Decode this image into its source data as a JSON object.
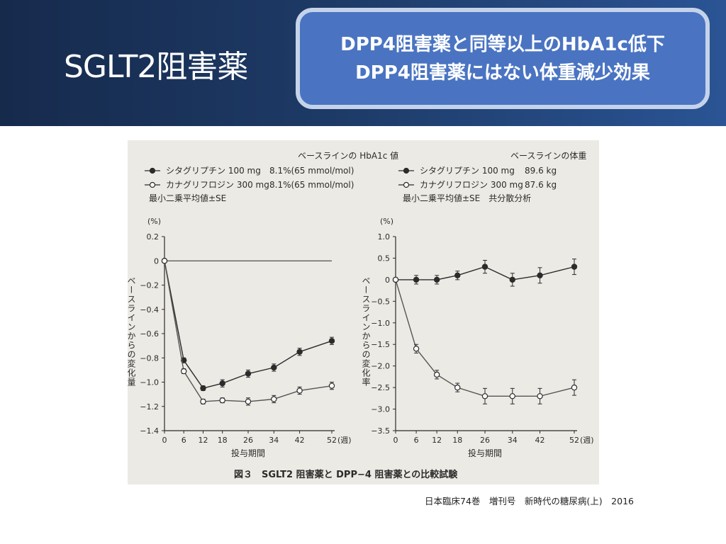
{
  "slide": {
    "title": "SGLT2阻害薬",
    "callout_line1": "DPP4阻害薬と同等以上のHbA1c低下",
    "callout_line2": "DPP4阻害薬にはない体重減少効果",
    "citation": "日本臨床74巻　増刊号　新時代の糖尿病(上)　2016",
    "figure_caption": "図３　SGLT2 阻害薬と DPP−4 阻害薬との比較試験",
    "colors": {
      "header": "#1d3a66",
      "callout_fill": "#4a74c2",
      "callout_border": "#c5d3ea"
    }
  },
  "chart_data": [
    {
      "type": "line",
      "title": "ベースラインの HbA1c 値",
      "legend": [
        {
          "marker": "filled",
          "label": "シタグリプチン 100 mg",
          "baseline": "8.1%(65 mmol/mol)"
        },
        {
          "marker": "open",
          "label": "カナグリフロジン 300 mg",
          "baseline": "8.1%(65 mmol/mol)"
        }
      ],
      "note": "最小二乗平均値±SE",
      "ylabel": "ベースラインからの変化量",
      "yunit": "(%)",
      "xlabel": "投与期間",
      "xunit": "(週)",
      "x": [
        0,
        6,
        12,
        18,
        26,
        34,
        42,
        52
      ],
      "ylim": [
        -1.4,
        0.2
      ],
      "yticks": [
        "0.2",
        "0",
        "−0.2",
        "−0.4",
        "−0.6",
        "−0.8",
        "−1.0",
        "−1.2",
        "−1.4"
      ],
      "ytick_values": [
        0.2,
        0,
        -0.2,
        -0.4,
        -0.6,
        -0.8,
        -1.0,
        -1.2,
        -1.4
      ],
      "series": [
        {
          "name": "シタグリプチン 100 mg",
          "marker": "filled",
          "values": [
            0,
            -0.82,
            -1.05,
            -1.01,
            -0.93,
            -0.88,
            -0.75,
            -0.66
          ],
          "errors": [
            0,
            0.02,
            0.02,
            0.03,
            0.03,
            0.03,
            0.03,
            0.03
          ]
        },
        {
          "name": "カナグリフロジン 300 mg",
          "marker": "open",
          "values": [
            0,
            -0.91,
            -1.16,
            -1.15,
            -1.16,
            -1.14,
            -1.07,
            -1.03
          ],
          "errors": [
            0,
            0.02,
            0.02,
            0.02,
            0.03,
            0.03,
            0.03,
            0.03
          ]
        }
      ]
    },
    {
      "type": "line",
      "title": "ベースラインの体重",
      "legend": [
        {
          "marker": "filled",
          "label": "シタグリプチン 100 mg",
          "baseline": "89.6 kg"
        },
        {
          "marker": "open",
          "label": "カナグリフロジン 300 mg",
          "baseline": "87.6 kg"
        }
      ],
      "note": "最小二乗平均値±SE　共分散分析",
      "ylabel": "ベースラインからの変化率",
      "yunit": "(%)",
      "xlabel": "投与期間",
      "xunit": "(週)",
      "x": [
        0,
        6,
        12,
        18,
        26,
        34,
        42,
        52
      ],
      "ylim": [
        -3.5,
        1.0
      ],
      "yticks": [
        "1.0",
        "0.5",
        "0",
        "−0.5",
        "−1.0",
        "−1.5",
        "−2.0",
        "−2.5",
        "−3.0",
        "−3.5"
      ],
      "ytick_values": [
        1.0,
        0.5,
        0,
        -0.5,
        -1.0,
        -1.5,
        -2.0,
        -2.5,
        -3.0,
        -3.5
      ],
      "series": [
        {
          "name": "シタグリプチン 100 mg",
          "marker": "filled",
          "values": [
            0,
            0,
            0,
            0.1,
            0.3,
            0,
            0.1,
            0.3
          ],
          "errors": [
            0,
            0.1,
            0.1,
            0.1,
            0.15,
            0.15,
            0.18,
            0.18
          ]
        },
        {
          "name": "カナグリフロジン 300 mg",
          "marker": "open",
          "values": [
            0,
            -1.6,
            -2.2,
            -2.5,
            -2.7,
            -2.7,
            -2.7,
            -2.5
          ],
          "errors": [
            0,
            0.1,
            0.1,
            0.1,
            0.18,
            0.18,
            0.18,
            0.18
          ]
        }
      ]
    }
  ]
}
